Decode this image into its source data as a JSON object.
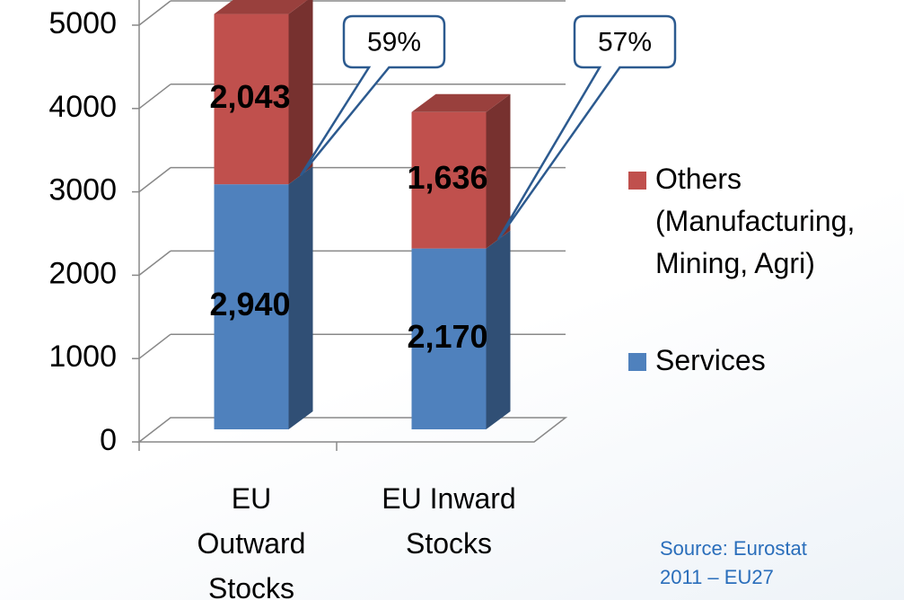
{
  "chart_data": {
    "type": "stacked_bar_3d",
    "categories": [
      "EU Outward Stocks",
      "EU Inward Stocks"
    ],
    "series": [
      {
        "name": "Services",
        "color": "#4f81bd",
        "values": [
          2940,
          2170
        ],
        "value_labels": [
          "2,940",
          "2,170"
        ]
      },
      {
        "name": "Others (Manufacturing, Mining, Agri)",
        "color": "#c0504d",
        "values": [
          2043,
          1636
        ],
        "value_labels": [
          "2,043",
          "1,636"
        ]
      }
    ],
    "ylim": [
      0,
      5000
    ],
    "yticks": [
      0,
      1000,
      2000,
      3000,
      4000,
      5000
    ],
    "grid": true,
    "legend": "right",
    "annotations": [
      "59%",
      "57%"
    ],
    "source": "Source: Eurostat 2011 – EU27"
  }
}
